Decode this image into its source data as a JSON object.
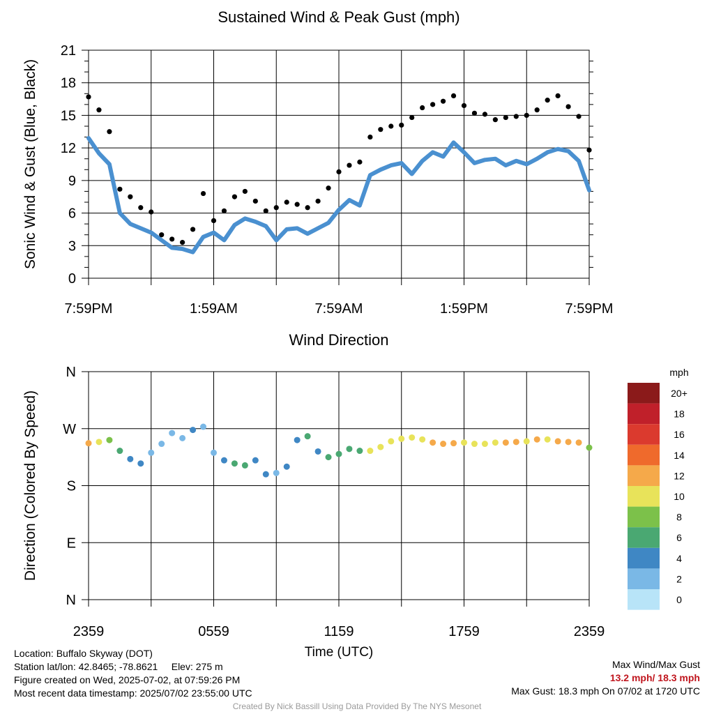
{
  "chart_data": [
    {
      "type": "scatter",
      "title": "Sustained Wind & Peak Gust (mph)",
      "ylabel": "Sonic Wind & Gust (Blue, Black)",
      "xlabel": "",
      "ylim": [
        0,
        21
      ],
      "yticks": [
        "0",
        "3",
        "6",
        "9",
        "12",
        "15",
        "18",
        "21"
      ],
      "xticks": [
        "7:59PM",
        "1:59AM",
        "7:59AM",
        "1:59PM",
        "7:59PM"
      ],
      "xlim_hours": [
        0,
        24
      ],
      "grid": true,
      "series": [
        {
          "color": "#4a90d0",
          "x": [
            0,
            0.5,
            1,
            1.5,
            2,
            2.5,
            3,
            3.5,
            4,
            4.5,
            5,
            5.5,
            6,
            6.5,
            7,
            7.5,
            8,
            8.5,
            9,
            9.5,
            10,
            10.5,
            11,
            11.5,
            12,
            12.5,
            13,
            13.5,
            14,
            14.5,
            15,
            15.5,
            16,
            16.5,
            17,
            17.5,
            18,
            18.5,
            19,
            19.5,
            20,
            20.5,
            21,
            21.5,
            22,
            22.5,
            23,
            23.5,
            24
          ],
          "values": [
            12.9,
            11.5,
            10.5,
            6.0,
            5.0,
            4.6,
            4.2,
            3.5,
            2.8,
            2.7,
            2.4,
            3.8,
            4.2,
            3.5,
            4.9,
            5.5,
            5.2,
            4.8,
            3.5,
            4.5,
            4.6,
            4.1,
            4.6,
            5.1,
            6.3,
            7.2,
            6.7,
            9.5,
            10.0,
            10.4,
            10.6,
            9.6,
            10.8,
            11.6,
            11.2,
            12.5,
            11.6,
            10.6,
            10.9,
            11.0,
            10.4,
            10.8,
            10.5,
            11.0,
            11.6,
            11.9,
            11.7,
            10.8,
            8.1
          ]
        },
        {
          "color": "#000000",
          "x": [
            0,
            0.5,
            1,
            1.5,
            2,
            2.5,
            3,
            3.5,
            4,
            4.5,
            5,
            5.5,
            6,
            6.5,
            7,
            7.5,
            8,
            8.5,
            9,
            9.5,
            10,
            10.5,
            11,
            11.5,
            12,
            12.5,
            13,
            13.5,
            14,
            14.5,
            15,
            15.5,
            16,
            16.5,
            17,
            17.5,
            18,
            18.5,
            19,
            19.5,
            20,
            20.5,
            21,
            21.5,
            22,
            22.5,
            23,
            23.5,
            24
          ],
          "values": [
            16.7,
            15.5,
            13.5,
            8.2,
            7.5,
            6.5,
            6.1,
            4.0,
            3.6,
            3.3,
            4.5,
            7.8,
            5.3,
            6.2,
            7.5,
            8.0,
            7.1,
            6.2,
            6.5,
            7.0,
            6.8,
            6.5,
            7.1,
            8.3,
            9.8,
            10.4,
            10.7,
            13.0,
            13.7,
            14.0,
            14.1,
            14.8,
            15.7,
            16.0,
            16.3,
            16.8,
            15.9,
            15.2,
            15.1,
            14.6,
            14.8,
            14.9,
            15.0,
            15.5,
            16.4,
            16.8,
            15.8,
            14.9,
            11.8
          ]
        }
      ]
    },
    {
      "type": "scatter",
      "title": "Wind Direction",
      "ylabel": "Direction (Colored By Speed)",
      "xlabel": "Time (UTC)",
      "ylim": [
        0,
        360
      ],
      "yticks": [
        "N",
        "E",
        "S",
        "W",
        "N"
      ],
      "xticks": [
        "2359",
        "0559",
        "1159",
        "1759",
        "2359"
      ],
      "xlim_hours": [
        0,
        24
      ],
      "grid": true,
      "x": [
        0,
        0.5,
        1,
        1.5,
        2,
        2.5,
        3,
        3.5,
        4,
        4.5,
        5,
        5.5,
        6,
        6.5,
        7,
        7.5,
        8,
        8.5,
        9,
        9.5,
        10,
        10.5,
        11,
        11.5,
        12,
        12.5,
        13,
        13.5,
        14,
        14.5,
        15,
        15.5,
        16,
        16.5,
        17,
        17.5,
        18,
        18.5,
        19,
        19.5,
        20,
        20.5,
        21,
        21.5,
        22,
        22.5,
        23,
        23.5,
        24
      ],
      "values": [
        247,
        249,
        252,
        235,
        222,
        215,
        232,
        246,
        263,
        255,
        268,
        273,
        232,
        220,
        215,
        212,
        220,
        198,
        200,
        210,
        252,
        258,
        234,
        225,
        230,
        238,
        235,
        235,
        241,
        250,
        254,
        256,
        253,
        248,
        246,
        247,
        248,
        246,
        246,
        248,
        248,
        249,
        250,
        253,
        253,
        250,
        249,
        248,
        240
      ],
      "speed": [
        12,
        11,
        9,
        6,
        4,
        4,
        3,
        3,
        2,
        2,
        4,
        3,
        3,
        4,
        6,
        7,
        5,
        4,
        3,
        4,
        5,
        6,
        4,
        6,
        6,
        7,
        7,
        10,
        10,
        10,
        10,
        11,
        11,
        12,
        12,
        12,
        11,
        11,
        11,
        11,
        12,
        12,
        11,
        12,
        11,
        12,
        12,
        13,
        8
      ]
    }
  ],
  "colorbar": {
    "title": "mph",
    "labels": [
      "20+",
      "18",
      "16",
      "14",
      "12",
      "10",
      "8",
      "6",
      "4",
      "2",
      "0"
    ],
    "colors": [
      "#8b1a1a",
      "#c0202a",
      "#db3a2e",
      "#ef6a2c",
      "#f5a94a",
      "#e8e35a",
      "#7cc14a",
      "#4aa872",
      "#3f87c4",
      "#7ab8e6",
      "#b8e4f8"
    ]
  },
  "info": {
    "location": "Location: Buffalo Skyway (DOT)",
    "station": "Station lat/lon: 42.8465; -78.8621",
    "elevation": "Elev: 275 m",
    "created": "Figure created on Wed, 2025-07-02, at 07:59:26 PM",
    "recent": "Most recent data timestamp: 2025/07/02 23:55:00 UTC",
    "max_label": "Max Wind/Max Gust",
    "max_values": "13.2 mph/ 18.3 mph",
    "max_gust": "Max Gust: 18.3 mph On 07/02 at 1720 UTC",
    "credit": "Created By Nick Bassill Using Data Provided By The NYS Mesonet"
  }
}
